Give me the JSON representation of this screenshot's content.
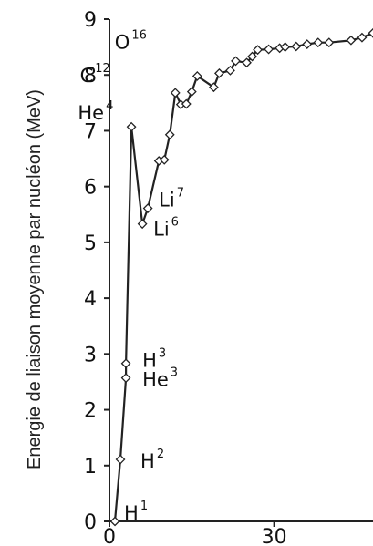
{
  "chart_data": {
    "type": "line",
    "title": "",
    "xlabel": "",
    "ylabel": "Energie de liaison moyenne par nucléon (MeV)",
    "xlim": [
      0,
      48
    ],
    "ylim": [
      0,
      9
    ],
    "x_ticks": [
      {
        "value": 0,
        "label": "0"
      },
      {
        "value": 30,
        "label": "30"
      }
    ],
    "y_ticks": [
      {
        "value": 0,
        "label": "0"
      },
      {
        "value": 1,
        "label": "1"
      },
      {
        "value": 2,
        "label": "2"
      },
      {
        "value": 3,
        "label": "3"
      },
      {
        "value": 4,
        "label": "4"
      },
      {
        "value": 5,
        "label": "5"
      },
      {
        "value": 6,
        "label": "6"
      },
      {
        "value": 7,
        "label": "7"
      },
      {
        "value": 8,
        "label": "8"
      },
      {
        "value": 9,
        "label": "9"
      }
    ],
    "grid": false,
    "legend": "none",
    "colors": {
      "line": "#222222",
      "marker_fill": "#ffffff",
      "marker_stroke": "#222222",
      "axis": "#222222"
    },
    "series": [
      {
        "values": [
          {
            "x": 1,
            "y": 0.0
          },
          {
            "x": 2,
            "y": 1.11
          },
          {
            "x": 3,
            "y": 2.57
          },
          {
            "x": 3,
            "y": 2.83
          },
          {
            "x": 4,
            "y": 7.07
          },
          {
            "x": 6,
            "y": 5.33
          },
          {
            "x": 7,
            "y": 5.61
          },
          {
            "x": 9,
            "y": 6.46
          },
          {
            "x": 10,
            "y": 6.48
          },
          {
            "x": 11,
            "y": 6.93
          },
          {
            "x": 12,
            "y": 7.68
          },
          {
            "x": 13,
            "y": 7.47
          },
          {
            "x": 14,
            "y": 7.48
          },
          {
            "x": 15,
            "y": 7.7
          },
          {
            "x": 16,
            "y": 7.98
          },
          {
            "x": 19,
            "y": 7.78
          },
          {
            "x": 20,
            "y": 8.03
          },
          {
            "x": 22,
            "y": 8.08
          },
          {
            "x": 23,
            "y": 8.25
          },
          {
            "x": 25,
            "y": 8.22
          },
          {
            "x": 26,
            "y": 8.33
          },
          {
            "x": 27,
            "y": 8.45
          },
          {
            "x": 29,
            "y": 8.46
          },
          {
            "x": 31,
            "y": 8.48
          },
          {
            "x": 32,
            "y": 8.5
          },
          {
            "x": 34,
            "y": 8.51
          },
          {
            "x": 36,
            "y": 8.55
          },
          {
            "x": 38,
            "y": 8.58
          },
          {
            "x": 40,
            "y": 8.58
          },
          {
            "x": 44,
            "y": 8.62
          },
          {
            "x": 46,
            "y": 8.67
          },
          {
            "x": 48,
            "y": 8.75
          }
        ]
      }
    ],
    "annotations": [
      {
        "name": "H",
        "mass": "1",
        "x": 1,
        "y": 0.0
      },
      {
        "name": "H",
        "mass": "2",
        "x": 2,
        "y": 1.11
      },
      {
        "name": "H",
        "mass": "3",
        "x": 3,
        "y": 2.83
      },
      {
        "name": "He",
        "mass": "3",
        "x": 3,
        "y": 2.57
      },
      {
        "name": "He",
        "mass": "4",
        "x": 4,
        "y": 7.07
      },
      {
        "name": "Li",
        "mass": "6",
        "x": 6,
        "y": 5.33
      },
      {
        "name": "Li",
        "mass": "7",
        "x": 7,
        "y": 5.61
      },
      {
        "name": "C",
        "mass": "12",
        "x": 12,
        "y": 7.68
      },
      {
        "name": "O",
        "mass": "16",
        "x": 16,
        "y": 7.98
      }
    ]
  }
}
